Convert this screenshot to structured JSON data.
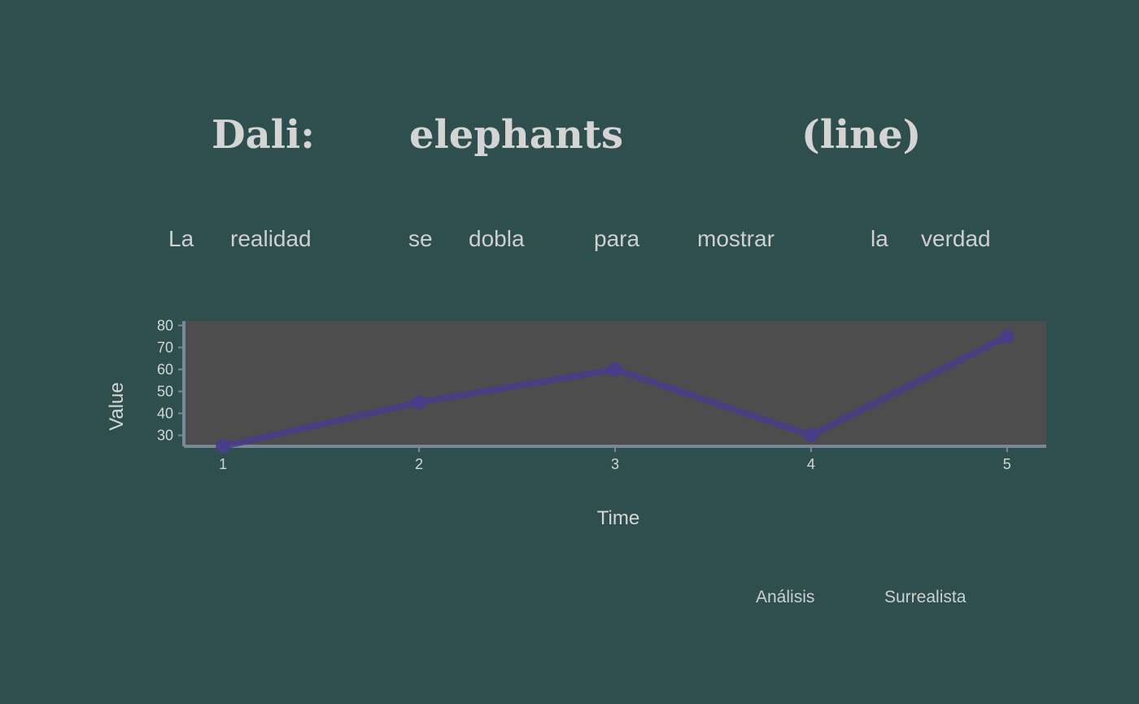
{
  "title_words": [
    "Dali:",
    "elephants",
    "(line)"
  ],
  "subtitle_words": [
    "La",
    "realidad",
    "se",
    "dobla",
    "para",
    "mostrar",
    "la",
    "verdad"
  ],
  "caption_words": [
    "Análisis",
    "Surrealista"
  ],
  "colors": {
    "background": "#2f4f4f",
    "plot_background": "#4d4d4d",
    "axis": "#778899",
    "series": "#483d8b",
    "text": "#d2d2d2"
  },
  "chart_data": {
    "type": "line",
    "x": [
      1,
      2,
      3,
      4,
      5
    ],
    "series": [
      {
        "values": [
          25,
          45,
          60,
          30,
          75
        ]
      }
    ],
    "xlabel": "Time",
    "ylabel": "Value",
    "xticks": [
      1,
      2,
      3,
      4,
      5
    ],
    "yticks": [
      30,
      40,
      50,
      60,
      70,
      80
    ],
    "xlim": [
      0.8,
      5.2
    ],
    "ylim": [
      25,
      82
    ],
    "grid": false,
    "legend": "none"
  }
}
